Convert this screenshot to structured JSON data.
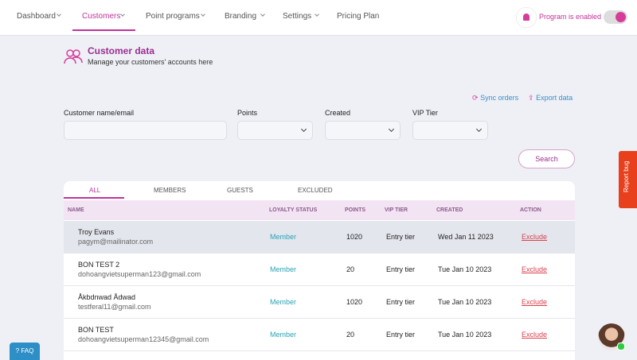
{
  "nav": {
    "items": [
      "Dashboard",
      "Customers",
      "Point programs",
      "Branding",
      "Settings",
      "Pricing Plan"
    ],
    "status": "Program is enabled"
  },
  "header": {
    "title": "Customer data",
    "subtitle": "Manage your customers' accounts here"
  },
  "actions": [
    "Sync orders",
    "Export data"
  ],
  "filters": {
    "labels": [
      "Customer name/email",
      "Points",
      "Created",
      "VIP Tier"
    ],
    "button": "Search"
  },
  "tabs": [
    "ALL",
    "MEMBERS",
    "GUESTS",
    "EXCLUDED"
  ],
  "table": {
    "columns": [
      "NAME",
      "LOYALTY STATUS",
      "POINTS",
      "VIP TIER",
      "CREATED",
      "ACTION"
    ],
    "rows": [
      [
        "Troy Evans",
        "pagym@mailinator.com",
        "Member",
        1020,
        "Entry tier",
        "Wed Jan 11 2023",
        "Exclude"
      ],
      [
        "BON TEST 2",
        "dohoangvietsuperman123@gmail.com",
        "Member",
        20,
        "Entry tier",
        "Tue Jan 10 2023",
        "Exclude"
      ],
      [
        "Åkbdnwad Ådwad",
        "testferal11@gmail.com",
        "Member",
        1020,
        "Entry tier",
        "Tue Jan 10 2023",
        "Exclude"
      ],
      [
        "BON TEST",
        "dohoangvietsuperman12345@gmail.com",
        "Member",
        20,
        "Entry tier",
        "Tue Jan 10 2023",
        "Exclude"
      ]
    ]
  },
  "side": {
    "report": "Report bug",
    "faq": "FAQ"
  }
}
